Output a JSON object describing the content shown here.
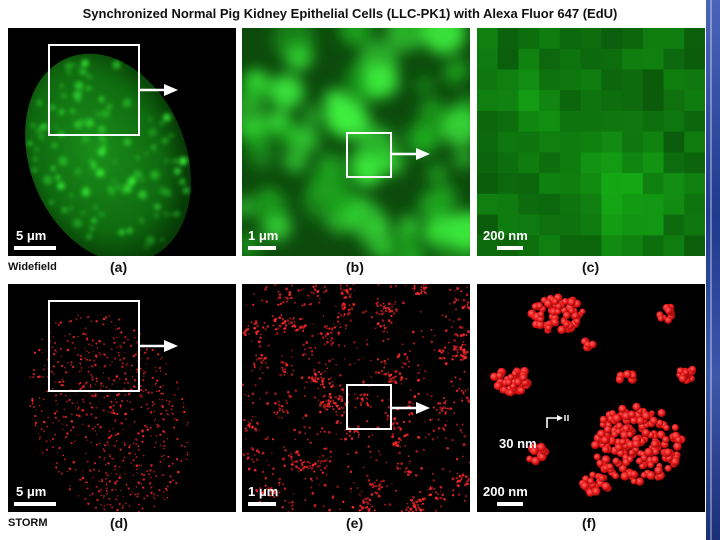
{
  "title": "Synchronized Normal Pig Kidney Epithelial Cells (LLC-PK1) with Alexa Fluor 647 (EdU)",
  "colors": {
    "widefield": "#22cc22",
    "storm": "#ff2a2a",
    "accent_stripe": "#2a46a0"
  },
  "rows": [
    {
      "name": "Widefield",
      "panels": [
        {
          "label": "(a)",
          "scale_bar": "5 μm"
        },
        {
          "label": "(b)",
          "scale_bar": "1 μm"
        },
        {
          "label": "(c)",
          "scale_bar": "200 nm"
        }
      ]
    },
    {
      "name": "STORM",
      "panels": [
        {
          "label": "(d)",
          "scale_bar": "5 μm"
        },
        {
          "label": "(e)",
          "scale_bar": "1 μm"
        },
        {
          "label": "(f)",
          "scale_bar": "200 nm",
          "annotation": "30 nm"
        }
      ]
    }
  ]
}
